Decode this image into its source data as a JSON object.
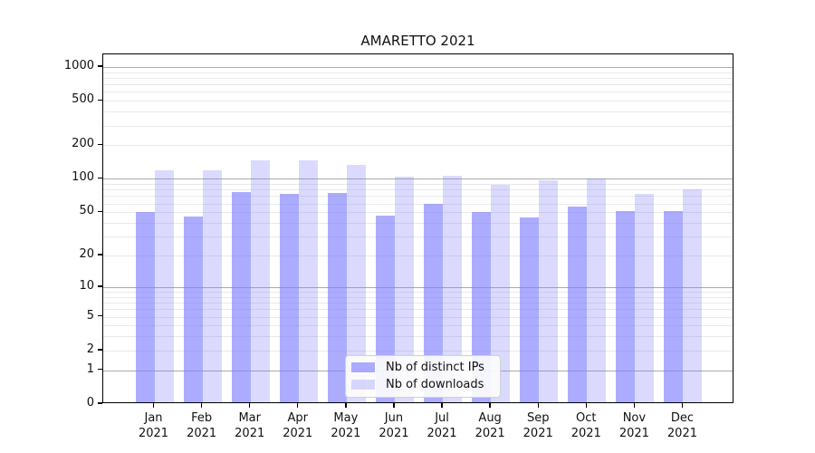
{
  "title": "AMARETTO 2021",
  "colors": {
    "ips_bar": "rgba(127,127,255,0.65)",
    "downloads_bar": "rgba(127,127,255,0.29)",
    "grid_major": "#ababab",
    "grid_minor": "#e9e9e9",
    "axis": "#000000",
    "legend_bg": "#fdfdfd",
    "legend_border": "#d2d2d2"
  },
  "legend": {
    "position": "lower center",
    "items": [
      {
        "label": "Nb of distinct IPs",
        "series": "ips"
      },
      {
        "label": "Nb of downloads",
        "series": "downloads"
      }
    ]
  },
  "chart_data": {
    "type": "bar",
    "title": "AMARETTO 2021",
    "xlabel": "",
    "ylabel": "",
    "y_scale": "log1p",
    "ylim": [
      0,
      1300
    ],
    "grid": "on",
    "y_ticks": [
      0,
      1,
      2,
      5,
      10,
      20,
      50,
      100,
      200,
      500,
      1000
    ],
    "categories": [
      "Jan 2021",
      "Feb 2021",
      "Mar 2021",
      "Apr 2021",
      "May 2021",
      "Jun 2021",
      "Jul 2021",
      "Aug 2021",
      "Sep 2021",
      "Oct 2021",
      "Nov 2021",
      "Dec 2021"
    ],
    "series": [
      {
        "name": "Nb of distinct IPs",
        "values": [
          48,
          44,
          73,
          71,
          72,
          45,
          57,
          48,
          43,
          54,
          49,
          49
        ]
      },
      {
        "name": "Nb of downloads",
        "values": [
          115,
          115,
          141,
          141,
          128,
          100,
          102,
          85,
          93,
          98,
          70,
          78
        ]
      }
    ],
    "legend_position": "lower center"
  }
}
